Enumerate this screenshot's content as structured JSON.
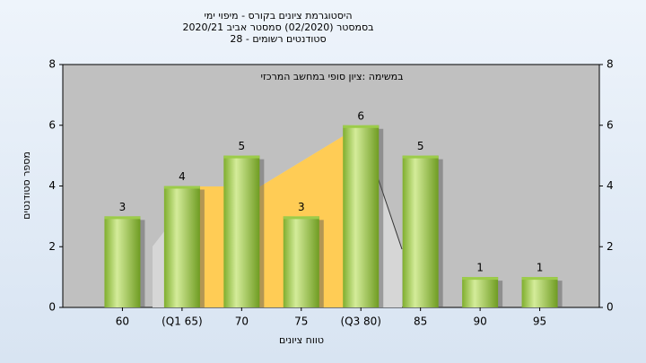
{
  "chart_data": {
    "type": "bar",
    "title": "היסטוגרמת ציונים בקורס - מיפוי ימי",
    "subtitle": "בסמסטר  (02/2020)  סמסטר אביב 2020/21",
    "subtitle2": "סטודנטים רשומים - 28",
    "annotation": "במשימה :ציון סופי במחשב המרכזי",
    "y_label": "מספר סטודנטים",
    "x_label": "טווח ציונים",
    "categories": [
      "60",
      "(Q1 65)",
      "70",
      "75",
      "(Q3 80)",
      "85",
      "90",
      "95"
    ],
    "values": [
      3,
      4,
      5,
      3,
      6,
      5,
      1,
      1
    ],
    "color": "#9ccc4a",
    "ylim": [
      0,
      8
    ],
    "yticks": [
      0,
      2,
      4,
      6,
      8
    ],
    "y2lim": [
      0,
      8
    ],
    "y2ticks": [
      0,
      2,
      4,
      6,
      8
    ]
  }
}
